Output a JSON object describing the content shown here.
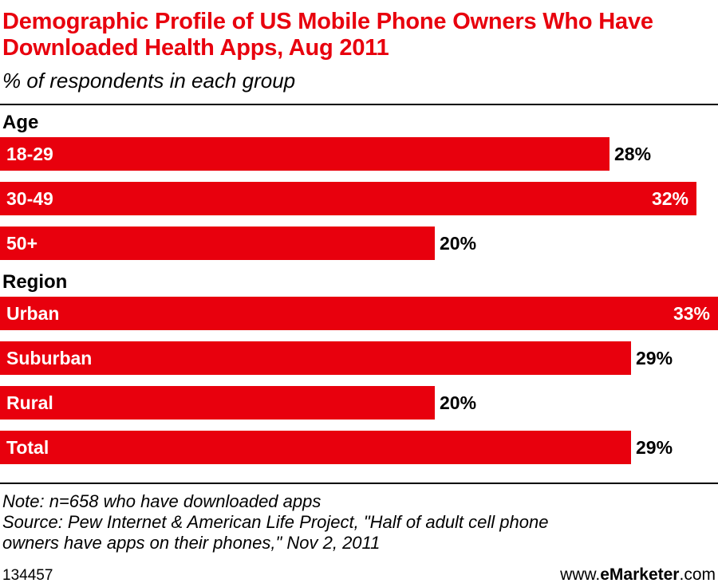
{
  "header": {
    "title": "Demographic Profile of US Mobile Phone Owners Who Have Downloaded Health Apps, Aug 2011",
    "subtitle": "% of respondents in each group"
  },
  "chart_data": {
    "type": "bar",
    "orientation": "horizontal",
    "title": "Demographic Profile of US Mobile Phone Owners Who Have Downloaded Health Apps, Aug 2011",
    "subtitle": "% of respondents in each group",
    "unit": "%",
    "bar_color": "#e8000d",
    "groups": [
      {
        "name": "Age",
        "categories": [
          "18-29",
          "30-49",
          "50+"
        ],
        "values": [
          28,
          32,
          20
        ]
      },
      {
        "name": "Region",
        "categories": [
          "Urban",
          "Suburban",
          "Rural"
        ],
        "values": [
          33,
          29,
          20
        ]
      },
      {
        "name": "",
        "categories": [
          "Total"
        ],
        "values": [
          29
        ]
      }
    ],
    "xlim": [
      0,
      33
    ],
    "legend": "none",
    "grid": false
  },
  "notes": {
    "note": "Note: n=658 who have downloaded apps",
    "source_line1": "Source: Pew Internet & American Life Project, \"Half of adult cell phone",
    "source_line2": "owners have apps on their phones,\" Nov 2, 2011"
  },
  "footer": {
    "id": "134457",
    "brand_prefix": "www.",
    "brand_name": "eMarketer",
    "brand_suffix": ".com"
  }
}
